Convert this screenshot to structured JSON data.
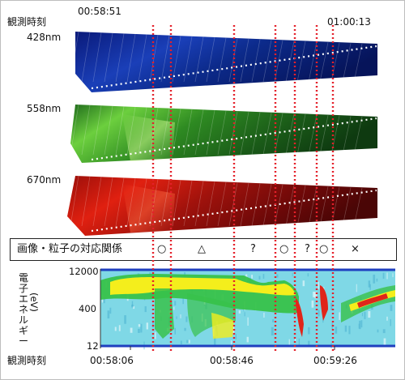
{
  "top_axis": {
    "label": "観測時刻",
    "start_time": "00:58:51",
    "end_time": "01:00:13"
  },
  "images": [
    {
      "label": "428nm",
      "tint": "blue",
      "colors": [
        "#05124a",
        "#1a3fb8",
        "#0a1a6a"
      ]
    },
    {
      "label": "558nm",
      "tint": "green",
      "colors": [
        "#0b3a10",
        "#5fbf3a",
        "#1f6a1c"
      ]
    },
    {
      "label": "670nm",
      "tint": "red",
      "colors": [
        "#4a0606",
        "#e02010",
        "#8a0d0a"
      ]
    }
  ],
  "correspondence": {
    "label": "画像・粒子の対応関係",
    "symbols": [
      "○",
      "△",
      "?",
      "○",
      "?",
      "○",
      "×"
    ]
  },
  "spectrogram": {
    "ylabel": "電子エネルギー",
    "yunit": "(eV)",
    "yticks": [
      "12000",
      "400",
      "12"
    ],
    "line_color": "#1f3fbf"
  },
  "bottom_axis": {
    "label": "観測時刻",
    "ticks": [
      "00:58:06",
      "00:58:46",
      "00:59:26"
    ]
  },
  "colors": {
    "marker_line": "#e4202a",
    "spectro_bg": "#7fd8e6",
    "spectro_green": "#38c24a",
    "spectro_yellow": "#f4ee1c",
    "spectro_red": "#e0251a"
  }
}
